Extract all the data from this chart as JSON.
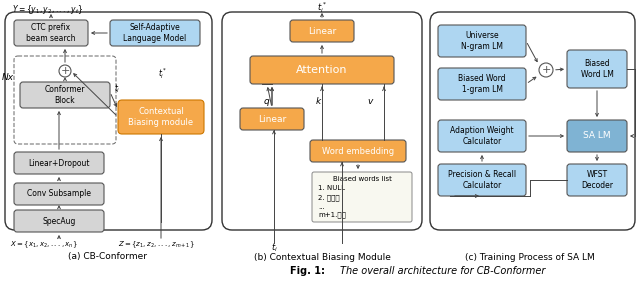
{
  "figsize": [
    6.4,
    2.86
  ],
  "dpi": 100,
  "bg_color": "#ffffff",
  "orange": "#F5A84A",
  "light_blue": "#AED6F1",
  "blue_sa": "#7FB3D3",
  "gray": "#D5D5D5",
  "edge": "#555555",
  "caption": "Fig. 1: The overall architecture for CB-Conformer",
  "sub_a": "(a) CB-Conformer",
  "sub_b": "(b) Contextual Biasing Module",
  "sub_c": "(c) Training Process of SA LM"
}
